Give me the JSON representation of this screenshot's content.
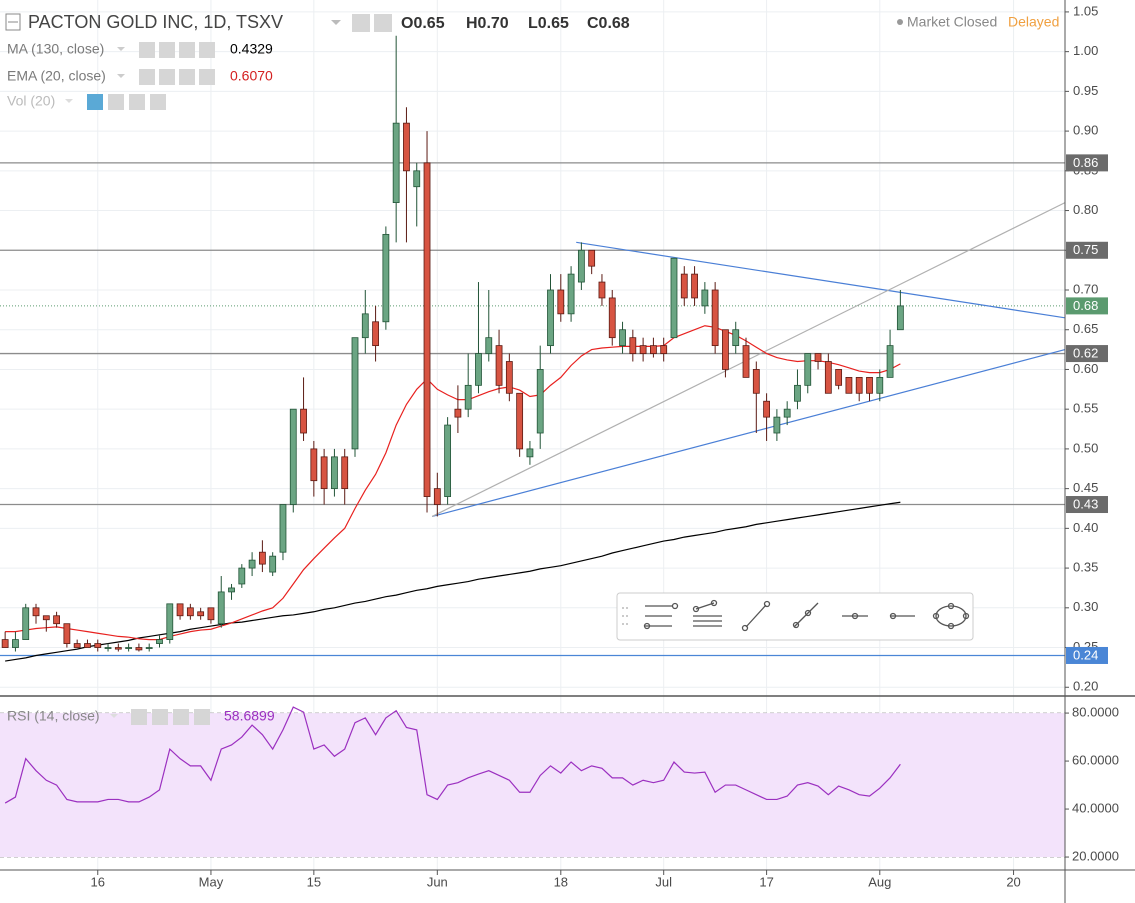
{
  "chart_data": [
    {
      "type": "candlestick",
      "title": "PACTON GOLD INC, 1D, TSXV",
      "ohlc_legend": [
        "O0.65",
        "H0.70",
        "L0.65",
        "C0.68"
      ],
      "status": "Market Closed",
      "delay": "Delayed",
      "volume_indicator": "Vol (20)",
      "up_color": "#6ba583",
      "down_color": "#d75442",
      "xlim": [
        -0.5,
        103
      ],
      "xticks": [
        {
          "value": 9,
          "label": "16"
        },
        {
          "value": 20,
          "label": "May"
        },
        {
          "value": 30,
          "label": "15"
        },
        {
          "value": 42,
          "label": "Jun"
        },
        {
          "value": 54,
          "label": "18"
        },
        {
          "value": 64,
          "label": "Jul"
        },
        {
          "value": 74,
          "label": "17"
        },
        {
          "value": 85,
          "label": "Aug"
        },
        {
          "value": 98,
          "label": "20"
        }
      ],
      "ylim": [
        0.189,
        1.065
      ],
      "yticks": [
        {
          "value": 0.2,
          "label": "0.20"
        },
        {
          "value": 0.25,
          "label": "0.25"
        },
        {
          "value": 0.3,
          "label": "0.30"
        },
        {
          "value": 0.35,
          "label": "0.35"
        },
        {
          "value": 0.4,
          "label": "0.40"
        },
        {
          "value": 0.45,
          "label": "0.45"
        },
        {
          "value": 0.5,
          "label": "0.50"
        },
        {
          "value": 0.55,
          "label": "0.55"
        },
        {
          "value": 0.6,
          "label": "0.60"
        },
        {
          "value": 0.65,
          "label": "0.65"
        },
        {
          "value": 0.7,
          "label": "0.70"
        },
        {
          "value": 0.75,
          "label": "0.75"
        },
        {
          "value": 0.8,
          "label": "0.80"
        },
        {
          "value": 0.85,
          "label": "0.85"
        },
        {
          "value": 0.9,
          "label": "0.90"
        },
        {
          "value": 0.95,
          "label": "0.95"
        },
        {
          "value": 1.0,
          "label": "1.00"
        },
        {
          "value": 1.05,
          "label": "1.05"
        }
      ],
      "grid": true,
      "open": [
        0.26,
        0.25,
        0.26,
        0.3,
        0.29,
        0.29,
        0.28,
        0.255,
        0.255,
        0.255,
        0.25,
        0.25,
        0.25,
        0.25,
        0.25,
        0.255,
        0.26,
        0.305,
        0.3,
        0.295,
        0.3,
        0.28,
        0.32,
        0.33,
        0.35,
        0.37,
        0.345,
        0.37,
        0.43,
        0.55,
        0.5,
        0.49,
        0.45,
        0.49,
        0.5,
        0.64,
        0.66,
        0.66,
        0.81,
        0.91,
        0.83,
        0.86,
        0.45,
        0.44,
        0.55,
        0.55,
        0.58,
        0.62,
        0.63,
        0.61,
        0.57,
        0.49,
        0.52,
        0.63,
        0.7,
        0.67,
        0.71,
        0.75,
        0.71,
        0.69,
        0.63,
        0.64,
        0.63,
        0.63,
        0.63,
        0.64,
        0.72,
        0.72,
        0.68,
        0.7,
        0.65,
        0.63,
        0.63,
        0.6,
        0.56,
        0.52,
        0.54,
        0.56,
        0.58,
        0.62,
        0.61,
        0.6,
        0.59,
        0.59,
        0.59,
        0.57,
        0.59,
        0.65
      ],
      "high": [
        0.27,
        0.27,
        0.305,
        0.305,
        0.29,
        0.295,
        0.28,
        0.26,
        0.26,
        0.26,
        0.255,
        0.255,
        0.255,
        0.255,
        0.255,
        0.265,
        0.305,
        0.305,
        0.305,
        0.3,
        0.3,
        0.34,
        0.33,
        0.355,
        0.37,
        0.385,
        0.37,
        0.43,
        0.55,
        0.59,
        0.51,
        0.5,
        0.5,
        0.5,
        0.64,
        0.7,
        0.68,
        0.78,
        1.02,
        0.93,
        0.86,
        0.9,
        0.47,
        0.54,
        0.58,
        0.62,
        0.71,
        0.7,
        0.65,
        0.62,
        0.57,
        0.51,
        0.63,
        0.72,
        0.72,
        0.73,
        0.76,
        0.75,
        0.72,
        0.7,
        0.66,
        0.65,
        0.64,
        0.64,
        0.64,
        0.74,
        0.73,
        0.73,
        0.71,
        0.71,
        0.65,
        0.66,
        0.64,
        0.61,
        0.57,
        0.55,
        0.56,
        0.6,
        0.62,
        0.62,
        0.62,
        0.6,
        0.59,
        0.59,
        0.59,
        0.6,
        0.65,
        0.7
      ],
      "low": [
        0.25,
        0.245,
        0.26,
        0.28,
        0.27,
        0.275,
        0.25,
        0.25,
        0.25,
        0.245,
        0.245,
        0.245,
        0.245,
        0.245,
        0.245,
        0.25,
        0.255,
        0.285,
        0.285,
        0.285,
        0.28,
        0.275,
        0.31,
        0.325,
        0.34,
        0.345,
        0.34,
        0.36,
        0.42,
        0.51,
        0.44,
        0.43,
        0.44,
        0.43,
        0.49,
        0.62,
        0.61,
        0.65,
        0.76,
        0.76,
        0.78,
        0.42,
        0.415,
        0.43,
        0.52,
        0.54,
        0.57,
        0.61,
        0.57,
        0.56,
        0.49,
        0.48,
        0.5,
        0.62,
        0.66,
        0.66,
        0.7,
        0.72,
        0.68,
        0.63,
        0.62,
        0.61,
        0.61,
        0.615,
        0.61,
        0.64,
        0.68,
        0.68,
        0.67,
        0.62,
        0.59,
        0.62,
        0.59,
        0.52,
        0.51,
        0.51,
        0.53,
        0.55,
        0.57,
        0.6,
        0.57,
        0.575,
        0.57,
        0.56,
        0.56,
        0.56,
        0.59,
        0.65
      ],
      "close": [
        0.25,
        0.26,
        0.3,
        0.29,
        0.285,
        0.28,
        0.255,
        0.25,
        0.25,
        0.25,
        0.25,
        0.248,
        0.25,
        0.247,
        0.25,
        0.26,
        0.305,
        0.29,
        0.29,
        0.29,
        0.285,
        0.32,
        0.325,
        0.35,
        0.36,
        0.355,
        0.365,
        0.43,
        0.55,
        0.52,
        0.46,
        0.45,
        0.49,
        0.45,
        0.64,
        0.67,
        0.63,
        0.77,
        0.91,
        0.85,
        0.85,
        0.44,
        0.43,
        0.53,
        0.54,
        0.58,
        0.62,
        0.64,
        0.58,
        0.57,
        0.5,
        0.5,
        0.6,
        0.7,
        0.67,
        0.72,
        0.75,
        0.73,
        0.69,
        0.64,
        0.65,
        0.62,
        0.62,
        0.62,
        0.62,
        0.74,
        0.69,
        0.69,
        0.7,
        0.63,
        0.6,
        0.65,
        0.59,
        0.57,
        0.54,
        0.54,
        0.55,
        0.58,
        0.62,
        0.61,
        0.57,
        0.58,
        0.57,
        0.57,
        0.57,
        0.59,
        0.63,
        0.68
      ],
      "series": [
        {
          "name": "MA (130, close)",
          "color": "#000000",
          "last_label": "0.4329",
          "values": [
            0.233,
            0.235,
            0.237,
            0.24,
            0.242,
            0.244,
            0.246,
            0.248,
            0.251,
            0.253,
            0.255,
            0.257,
            0.259,
            0.262,
            0.264,
            0.266,
            0.268,
            0.27,
            0.273,
            0.275,
            0.277,
            0.279,
            0.281,
            0.282,
            0.284,
            0.286,
            0.288,
            0.29,
            0.291,
            0.293,
            0.295,
            0.298,
            0.3,
            0.303,
            0.306,
            0.308,
            0.311,
            0.314,
            0.316,
            0.319,
            0.322,
            0.324,
            0.327,
            0.329,
            0.331,
            0.333,
            0.336,
            0.338,
            0.34,
            0.342,
            0.344,
            0.346,
            0.349,
            0.351,
            0.353,
            0.356,
            0.359,
            0.362,
            0.365,
            0.369,
            0.372,
            0.375,
            0.378,
            0.381,
            0.384,
            0.386,
            0.389,
            0.391,
            0.393,
            0.395,
            0.398,
            0.4,
            0.402,
            0.405,
            0.407,
            0.409,
            0.411,
            0.413,
            0.415,
            0.417,
            0.419,
            0.421,
            0.423,
            0.425,
            0.427,
            0.429,
            0.431,
            0.4329
          ]
        },
        {
          "name": "EMA (20, close)",
          "color": "#e8211f",
          "last_label": "0.6070",
          "values": [
            0.27,
            0.27,
            0.272,
            0.274,
            0.275,
            0.276,
            0.274,
            0.272,
            0.27,
            0.268,
            0.266,
            0.264,
            0.263,
            0.261,
            0.26,
            0.26,
            0.264,
            0.267,
            0.27,
            0.272,
            0.273,
            0.277,
            0.281,
            0.286,
            0.291,
            0.296,
            0.3,
            0.312,
            0.33,
            0.348,
            0.362,
            0.375,
            0.388,
            0.4,
            0.425,
            0.448,
            0.468,
            0.495,
            0.53,
            0.556,
            0.575,
            0.588,
            0.575,
            0.568,
            0.562,
            0.562,
            0.567,
            0.572,
            0.576,
            0.578,
            0.574,
            0.566,
            0.568,
            0.58,
            0.59,
            0.605,
            0.617,
            0.625,
            0.627,
            0.628,
            0.629,
            0.629,
            0.629,
            0.629,
            0.63,
            0.64,
            0.645,
            0.65,
            0.655,
            0.653,
            0.648,
            0.643,
            0.636,
            0.628,
            0.62,
            0.615,
            0.612,
            0.61,
            0.611,
            0.611,
            0.609,
            0.606,
            0.602,
            0.598,
            0.596,
            0.596,
            0.6,
            0.607
          ]
        }
      ],
      "levels": [
        {
          "value": 0.86,
          "label": "0.86",
          "color": "#8c8c8c",
          "badge": "#6b6b6b"
        },
        {
          "value": 0.75,
          "label": "0.75",
          "color": "#8c8c8c",
          "badge": "#6b6b6b"
        },
        {
          "value": 0.62,
          "label": "0.62",
          "color": "#8c8c8c",
          "badge": "#6b6b6b"
        },
        {
          "value": 0.43,
          "label": "0.43",
          "color": "#8c8c8c",
          "badge": "#6b6b6b"
        },
        {
          "value": 0.24,
          "label": "0.24",
          "color": "#4a86d6",
          "badge": "#4a86d6"
        }
      ],
      "last_price": {
        "value": 0.68,
        "label": "0.68",
        "color": "#5b9a6f"
      },
      "trend_lines": [
        {
          "color": "#4a7fd6",
          "x": [
            55.5,
            103
          ],
          "y": [
            0.76,
            0.665
          ]
        },
        {
          "color": "#4a7fd6",
          "x": [
            41.5,
            103
          ],
          "y": [
            0.415,
            0.625
          ]
        },
        {
          "color": "#b0b0b0",
          "x": [
            41.5,
            103
          ],
          "y": [
            0.415,
            0.81
          ]
        }
      ]
    },
    {
      "type": "line",
      "xlim": [
        -0.5,
        103
      ],
      "ylim": [
        14.6,
        86.7
      ],
      "yticks": [
        {
          "value": 20,
          "label": "20.0000"
        },
        {
          "value": 40,
          "label": "40.0000"
        },
        {
          "value": 60,
          "label": "60.0000"
        },
        {
          "value": 80,
          "label": "80.0000"
        }
      ],
      "band": [
        20,
        80
      ],
      "band_color": "#f3e3fb",
      "series": [
        {
          "name": "RSI (14, close)",
          "color": "#9b30c0",
          "last_label": "58.6899",
          "values": [
            42.5,
            45,
            61,
            56,
            52,
            50,
            44,
            43,
            43,
            43,
            44,
            44,
            43,
            43,
            45,
            48,
            65,
            61,
            58,
            58,
            52,
            65,
            66.7,
            70,
            75,
            71,
            65,
            73,
            82.5,
            80.4,
            65,
            66.7,
            62,
            65,
            76,
            78,
            71,
            78,
            81,
            74,
            73,
            46,
            44,
            50,
            51,
            53,
            54.6,
            56,
            54,
            52,
            47,
            47,
            54,
            58,
            55,
            59.6,
            56,
            58,
            57,
            53,
            53,
            50,
            52,
            51,
            52,
            59.6,
            55.4,
            55,
            55.4,
            47,
            50,
            50,
            48,
            46,
            44,
            44,
            45.4,
            50,
            51,
            49.6,
            46,
            49.6,
            48,
            46,
            45.4,
            48.7,
            53,
            58.6899
          ]
        }
      ]
    }
  ]
}
